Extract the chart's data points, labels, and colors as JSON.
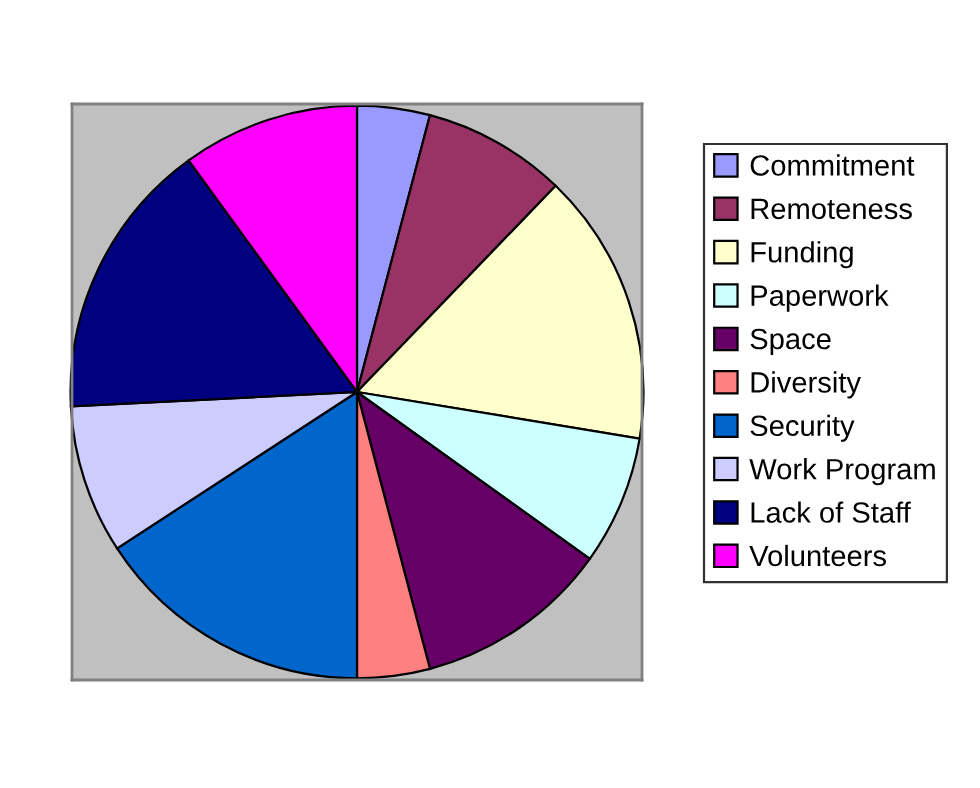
{
  "chart_data": {
    "type": "pie",
    "categories": [
      "Commitment",
      "Remoteness",
      "Funding",
      "Paperwork",
      "Space",
      "Diversity",
      "Security",
      "Work Program",
      "Lack of Staff",
      "Volunteers"
    ],
    "values": [
      4.1,
      8.1,
      15.4,
      7.3,
      11.0,
      4.1,
      15.8,
      8.4,
      15.8,
      10.0
    ],
    "colors": [
      "#9999ff",
      "#993366",
      "#ffffcc",
      "#ccffff",
      "#660066",
      "#ff8080",
      "#0066cc",
      "#ccccff",
      "#000080",
      "#ff00ff"
    ],
    "legend": "right"
  }
}
